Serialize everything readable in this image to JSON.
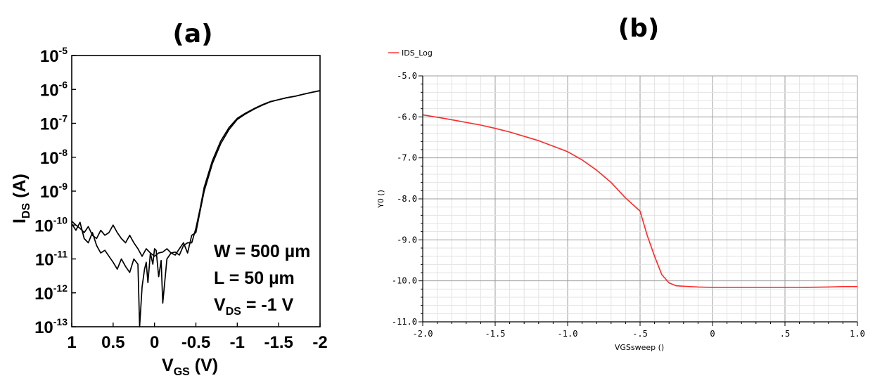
{
  "colors": {
    "axis": "#000000",
    "grid_major": "#9c9c9c",
    "grid_minor": "#e3e3e3",
    "trace_a": "#000000",
    "trace_b": "#ff2a2a"
  },
  "chart_data": [
    {
      "panel": "(a)",
      "type": "line",
      "xlabel": "V",
      "xlabel_sub": "GS",
      "xlabel_unit": " (V)",
      "ylabel": "I",
      "ylabel_sub": "DS",
      "ylabel_unit": " (A)",
      "xlim": [
        1,
        -2
      ],
      "ylim": [
        1e-13,
        1e-05
      ],
      "yscale": "log",
      "grid": false,
      "x_ticks": [
        {
          "value": 1,
          "label": "1"
        },
        {
          "value": 0.5,
          "label": "0.5"
        },
        {
          "value": 0,
          "label": "0"
        },
        {
          "value": -0.5,
          "label": "-0.5"
        },
        {
          "value": -1,
          "label": "-1"
        },
        {
          "value": -1.5,
          "label": "-1.5"
        },
        {
          "value": -2,
          "label": "-2"
        }
      ],
      "y_ticks": [
        {
          "value": 1e-05,
          "base": "10",
          "exp": "-5"
        },
        {
          "value": 1e-06,
          "base": "10",
          "exp": "-6"
        },
        {
          "value": 1e-07,
          "base": "10",
          "exp": "-7"
        },
        {
          "value": 1e-08,
          "base": "10",
          "exp": "-8"
        },
        {
          "value": 1e-09,
          "base": "10",
          "exp": "-9"
        },
        {
          "value": 1e-10,
          "base": "10",
          "exp": "-10"
        },
        {
          "value": 1e-11,
          "base": "10",
          "exp": "-11"
        },
        {
          "value": 1e-12,
          "base": "10",
          "exp": "-12"
        },
        {
          "value": 1e-13,
          "base": "10",
          "exp": "-13"
        }
      ],
      "annotations": {
        "w": "W = 500 µm",
        "l": "L = 50 µm",
        "vds": "V",
        "vds_sub": "DS",
        "vds_rest": " = -1 V"
      },
      "series": [
        {
          "x": [
            1.0,
            0.95,
            0.9,
            0.85,
            0.8,
            0.75,
            0.7,
            0.65,
            0.6,
            0.55,
            0.5,
            0.45,
            0.4,
            0.35,
            0.3,
            0.25,
            0.2,
            0.15,
            0.1,
            0.05,
            0.0,
            -0.05,
            -0.1,
            -0.15,
            -0.2,
            -0.25,
            -0.3,
            -0.35,
            -0.4,
            -0.45,
            -0.5,
            -0.55,
            -0.6,
            -0.7,
            -0.8,
            -0.9,
            -1.0,
            -1.1,
            -1.2,
            -1.3,
            -1.4,
            -1.5,
            -1.6,
            -1.7,
            -1.8,
            -1.9,
            -2.0
          ],
          "y": [
            1.3e-10,
            1e-10,
            8e-11,
            6e-11,
            9e-11,
            5e-11,
            4e-11,
            7e-11,
            5e-11,
            6e-11,
            1e-10,
            6e-11,
            4e-11,
            3e-11,
            5e-11,
            3e-11,
            2e-11,
            1.2e-11,
            2e-11,
            1.5e-11,
            1.2e-11,
            1.5e-11,
            1.6e-11,
            2e-11,
            1.5e-11,
            1.6e-11,
            1.3e-11,
            2.5e-11,
            3e-11,
            3e-11,
            8e-11,
            3e-10,
            1.3e-09,
            8e-09,
            3e-08,
            7.5e-08,
            1.4e-07,
            2e-07,
            2.7e-07,
            3.5e-07,
            4.4e-07,
            5e-07,
            5.7e-07,
            6.3e-07,
            7.2e-07,
            8.2e-07,
            9.2e-07
          ]
        },
        {
          "x": [
            1.0,
            0.95,
            0.9,
            0.85,
            0.8,
            0.75,
            0.7,
            0.65,
            0.6,
            0.55,
            0.5,
            0.45,
            0.4,
            0.35,
            0.3,
            0.25,
            0.2,
            0.18,
            0.15,
            0.12,
            0.1,
            0.08,
            0.05,
            0.02,
            0.0,
            -0.02,
            -0.05,
            -0.08,
            -0.1,
            -0.15,
            -0.2,
            -0.25,
            -0.3,
            -0.35,
            -0.4,
            -0.45,
            -0.5,
            -0.55,
            -0.6,
            -0.7,
            -0.8,
            -0.9,
            -1.0,
            -1.1,
            -1.2,
            -1.3,
            -1.4,
            -1.5,
            -1.6,
            -1.7,
            -1.8,
            -1.9,
            -2.0
          ],
          "y": [
            1.1e-10,
            7e-11,
            1.2e-10,
            4e-11,
            3e-11,
            6e-11,
            2.5e-11,
            1.5e-11,
            1.8e-11,
            1.2e-11,
            8e-12,
            5e-12,
            1e-11,
            6e-12,
            4e-12,
            1e-11,
            7e-12,
            1e-13,
            1.5e-12,
            5e-12,
            8e-12,
            2e-12,
            1.5e-11,
            7e-12,
            2e-11,
            1.8e-11,
            3e-12,
            9e-12,
            5e-13,
            1e-11,
            1.5e-11,
            1.3e-11,
            2e-11,
            3e-11,
            1.5e-11,
            5e-11,
            6e-11,
            2.5e-10,
            1e-09,
            6.5e-09,
            2.5e-08,
            6.5e-08,
            1.3e-07,
            1.9e-07,
            2.6e-07,
            3.4e-07,
            4.3e-07,
            5e-07,
            5.7e-07,
            6.3e-07,
            7.2e-07,
            8.2e-07,
            9.2e-07
          ]
        }
      ]
    },
    {
      "panel": "(b)",
      "type": "line",
      "xlabel": "VGSsweep ()",
      "ylabel": "Y0 ()",
      "xlim": [
        -2.0,
        1.0
      ],
      "ylim": [
        -11.0,
        -5.0
      ],
      "grid": true,
      "legend": "top-left",
      "x_ticks": [
        {
          "value": -2.0,
          "label": "-2.0"
        },
        {
          "value": -1.5,
          "label": "-1.5"
        },
        {
          "value": -1.0,
          "label": "-1.0"
        },
        {
          "value": -0.5,
          "label": "-.5"
        },
        {
          "value": 0,
          "label": "0"
        },
        {
          "value": 0.5,
          "label": ".5"
        },
        {
          "value": 1.0,
          "label": "1.0"
        }
      ],
      "y_ticks": [
        {
          "value": -5.0,
          "label": "-5.0"
        },
        {
          "value": -6.0,
          "label": "-6.0"
        },
        {
          "value": -7.0,
          "label": "-7.0"
        },
        {
          "value": -8.0,
          "label": "-8.0"
        },
        {
          "value": -9.0,
          "label": "-9.0"
        },
        {
          "value": -10.0,
          "label": "-10.0"
        },
        {
          "value": -11.0,
          "label": "-11.0"
        }
      ],
      "series": [
        {
          "name": "IDS_Log",
          "x": [
            -2.0,
            -1.8,
            -1.6,
            -1.5,
            -1.4,
            -1.2,
            -1.0,
            -0.9,
            -0.8,
            -0.7,
            -0.6,
            -0.5,
            -0.45,
            -0.4,
            -0.35,
            -0.3,
            -0.25,
            -0.2,
            -0.1,
            0.0,
            0.2,
            0.4,
            0.6,
            0.8,
            0.9,
            1.0
          ],
          "y": [
            -5.95,
            -6.07,
            -6.2,
            -6.28,
            -6.37,
            -6.58,
            -6.85,
            -7.05,
            -7.3,
            -7.6,
            -7.98,
            -8.3,
            -8.9,
            -9.4,
            -9.85,
            -10.05,
            -10.12,
            -10.13,
            -10.15,
            -10.16,
            -10.16,
            -10.16,
            -10.16,
            -10.15,
            -10.14,
            -10.14
          ]
        }
      ]
    }
  ]
}
